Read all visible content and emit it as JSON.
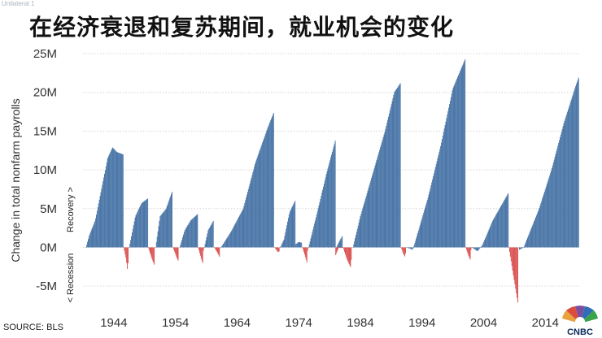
{
  "corner_label": "Unilateral 1",
  "title": "在经济衰退和复苏期间，就业机会的变化",
  "source": "SOURCE: BLS",
  "logo_text": "CNBC",
  "colors": {
    "recovery": "#4c77a8",
    "recession": "#dc5656",
    "grid": "#d6d6d6"
  },
  "chart_data": {
    "type": "bar",
    "ylabel": "Change in total nonfarm payrolls",
    "ylim": [
      -7.5,
      25
    ],
    "y_ticks": [
      -5,
      0,
      5,
      10,
      15,
      20,
      25
    ],
    "y_tick_labels": [
      "-5M",
      "0M",
      "5M",
      "10M",
      "15M",
      "20M",
      "25M"
    ],
    "x_tick_labels": [
      "1944",
      "1954",
      "1964",
      "1974",
      "1984",
      "1994",
      "2004",
      "2014"
    ],
    "x_ticks": [
      1944,
      1954,
      1964,
      1974,
      1984,
      1994,
      2004,
      2014
    ],
    "xlim": [
      1939,
      2019.5
    ],
    "annotations": {
      "recovery": "Recovery >",
      "recession": "< Recession"
    },
    "units": "millions of jobs",
    "series": [
      {
        "recovery_points": [
          [
            1939.5,
            0
          ],
          [
            1940,
            1.5
          ],
          [
            1941,
            3.5
          ],
          [
            1942,
            7.5
          ],
          [
            1943,
            11.5
          ],
          [
            1943.8,
            12.9
          ],
          [
            1944.5,
            12.3
          ],
          [
            1945.5,
            12.0
          ]
        ],
        "recession_points": [
          [
            1945.6,
            0
          ],
          [
            1946.0,
            -1.5
          ],
          [
            1946.3,
            -3.4
          ],
          [
            1946.35,
            0
          ]
        ]
      },
      {
        "recovery_points": [
          [
            1946.5,
            0
          ],
          [
            1947.5,
            4.0
          ],
          [
            1948.5,
            5.7
          ],
          [
            1949.5,
            6.3
          ]
        ],
        "recession_points": [
          [
            1949.6,
            0
          ],
          [
            1950.2,
            -1.5
          ],
          [
            1950.6,
            -2.3
          ],
          [
            1950.65,
            0
          ]
        ]
      },
      {
        "recovery_points": [
          [
            1950.8,
            0
          ],
          [
            1951.5,
            4.0
          ],
          [
            1952.5,
            5.0
          ],
          [
            1953.5,
            7.3
          ]
        ],
        "recession_points": [
          [
            1953.6,
            0
          ],
          [
            1954.2,
            -1.3
          ],
          [
            1954.5,
            -1.8
          ],
          [
            1954.55,
            0
          ]
        ]
      },
      {
        "recovery_points": [
          [
            1954.7,
            0
          ],
          [
            1955.5,
            2.2
          ],
          [
            1956.5,
            3.5
          ],
          [
            1957.6,
            4.3
          ]
        ],
        "recession_points": [
          [
            1957.7,
            0
          ],
          [
            1958.2,
            -1.5
          ],
          [
            1958.5,
            -2.2
          ],
          [
            1958.55,
            0
          ]
        ]
      },
      {
        "recovery_points": [
          [
            1958.7,
            0
          ],
          [
            1959.3,
            2.2
          ],
          [
            1960.2,
            3.5
          ]
        ],
        "recession_points": [
          [
            1960.3,
            0
          ],
          [
            1960.9,
            -0.8
          ],
          [
            1961.2,
            -1.3
          ],
          [
            1961.25,
            0
          ]
        ]
      },
      {
        "recovery_points": [
          [
            1961.4,
            0
          ],
          [
            1963.0,
            2.0
          ],
          [
            1965.0,
            5.0
          ],
          [
            1967.0,
            11.0
          ],
          [
            1969.0,
            15.5
          ],
          [
            1970.0,
            17.5
          ]
        ],
        "recession_points": [
          [
            1970.1,
            0
          ],
          [
            1970.6,
            -0.6
          ],
          [
            1970.9,
            -0.5
          ]
        ]
      },
      {
        "recovery_points": [
          [
            1971.0,
            0
          ],
          [
            1971.6,
            1.0
          ],
          [
            1972.5,
            4.5
          ],
          [
            1973.4,
            6.0
          ]
        ],
        "recession_points": []
      },
      {
        "recovery_points": [
          [
            1973.5,
            0.4
          ],
          [
            1974.0,
            0.7
          ],
          [
            1974.5,
            0.6
          ]
        ],
        "recession_points": [
          [
            1974.6,
            0
          ],
          [
            1975.0,
            -1.0
          ],
          [
            1975.4,
            -2.2
          ],
          [
            1975.45,
            0
          ]
        ]
      },
      {
        "recovery_points": [
          [
            1975.6,
            0
          ],
          [
            1977.0,
            4.5
          ],
          [
            1978.5,
            9.5
          ],
          [
            1980.0,
            14.0
          ]
        ],
        "recession_points": []
      },
      {
        "recovery_points": [
          [
            1980.1,
            0
          ],
          [
            1980.6,
            0.8
          ],
          [
            1981.1,
            1.5
          ]
        ],
        "recession_points": [
          [
            1980.0,
            -1.0
          ],
          [
            1980.5,
            0
          ],
          [
            1981.2,
            0
          ],
          [
            1981.8,
            -1.5
          ],
          [
            1982.5,
            -2.7
          ],
          [
            1982.55,
            0
          ]
        ]
      },
      {
        "recovery_points": [
          [
            1982.8,
            0
          ],
          [
            1984.0,
            4.0
          ],
          [
            1986.0,
            9.5
          ],
          [
            1988.0,
            15.0
          ],
          [
            1989.5,
            20.0
          ],
          [
            1990.5,
            21.2
          ]
        ],
        "recession_points": [
          [
            1990.6,
            0
          ],
          [
            1991.0,
            -0.9
          ],
          [
            1991.3,
            -1.3
          ],
          [
            1991.35,
            0
          ]
        ]
      },
      {
        "recovery_points": [
          [
            1991.5,
            0
          ],
          [
            1992.5,
            -0.3
          ],
          [
            1993.0,
            1.0
          ],
          [
            1995.0,
            6.5
          ],
          [
            1997.0,
            13.0
          ],
          [
            1999.0,
            20.5
          ],
          [
            2001.0,
            24.3
          ]
        ],
        "recession_points": [
          [
            2001.1,
            0
          ],
          [
            2001.5,
            -1.0
          ],
          [
            2001.9,
            -1.7
          ],
          [
            2001.95,
            0
          ]
        ]
      },
      {
        "recovery_points": [
          [
            2002.1,
            0
          ],
          [
            2003.0,
            -0.5
          ],
          [
            2003.8,
            0.3
          ],
          [
            2005.5,
            3.5
          ],
          [
            2008.0,
            7.0
          ]
        ],
        "recession_points": [
          [
            2008.1,
            0
          ],
          [
            2008.8,
            -3.5
          ],
          [
            2009.6,
            -7.4
          ],
          [
            2009.65,
            0
          ]
        ]
      },
      {
        "recovery_points": [
          [
            2009.8,
            -0.3
          ],
          [
            2010.5,
            0
          ],
          [
            2011.5,
            2.0
          ],
          [
            2013.0,
            5.0
          ],
          [
            2015.0,
            10.0
          ],
          [
            2017.0,
            16.0
          ],
          [
            2019.0,
            21.0
          ],
          [
            2019.4,
            21.9
          ]
        ],
        "recession_points": []
      }
    ]
  }
}
